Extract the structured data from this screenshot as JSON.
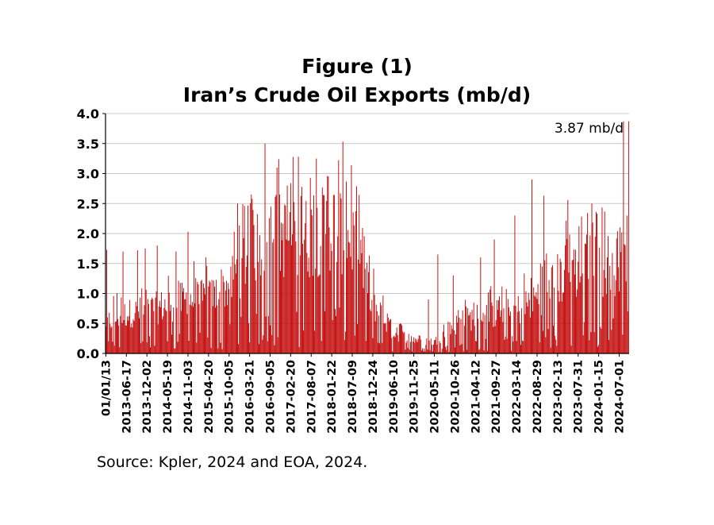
{
  "chart_data": {
    "type": "bar",
    "title": "Figure (1)",
    "subtitle": "Iran’s Crude Oil Exports (mb/d)",
    "source": "Source: Kpler, 2024 and EOA, 2024.",
    "annotation": "3.87 mb/d",
    "ylim": [
      0,
      4.0
    ],
    "y_ticks": [
      "0.0",
      "0.5",
      "1.0",
      "1.5",
      "2.0",
      "2.5",
      "3.0",
      "3.5",
      "4.0"
    ],
    "x_tick_labels": [
      "01/01/13",
      "2013-06-17",
      "2013-12-02",
      "2014-05-19",
      "2014-11-03",
      "2015-04-20",
      "2015-10-05",
      "2016-03-21",
      "2016-09-05",
      "2017-02-20",
      "2017-08-07",
      "2018-01-22",
      "2018-07-09",
      "2018-12-24",
      "2019-06-10",
      "2019-11-25",
      "2020-05-11",
      "2020-10-26",
      "2021-04-12",
      "2021-09-27",
      "2022-03-14",
      "2022-08-29",
      "2023-02-13",
      "2023-07-31",
      "2024-01-15",
      "2024-07-01"
    ],
    "frequency": "weekly",
    "bar_color": "#c00000",
    "grid": "horizontal",
    "trend_anchors": [
      [
        0,
        0.55
      ],
      [
        24,
        0.7
      ],
      [
        48,
        0.75
      ],
      [
        72,
        0.85
      ],
      [
        96,
        0.95
      ],
      [
        120,
        0.95
      ],
      [
        144,
        1.2
      ],
      [
        168,
        1.8
      ],
      [
        192,
        2.15
      ],
      [
        216,
        2.0
      ],
      [
        240,
        2.05
      ],
      [
        264,
        2.25
      ],
      [
        288,
        2.05
      ],
      [
        300,
        1.4
      ],
      [
        312,
        0.9
      ],
      [
        336,
        0.35
      ],
      [
        360,
        0.25
      ],
      [
        384,
        0.2
      ],
      [
        408,
        0.5
      ],
      [
        432,
        0.65
      ],
      [
        456,
        0.7
      ],
      [
        480,
        0.75
      ],
      [
        504,
        1.0
      ],
      [
        528,
        1.3
      ],
      [
        552,
        1.45
      ],
      [
        576,
        1.55
      ],
      [
        600,
        1.6
      ],
      [
        611,
        1.6
      ]
    ],
    "peak_anchors": [
      [
        1,
        1.73
      ],
      [
        20,
        1.7
      ],
      [
        37,
        1.72
      ],
      [
        46,
        1.75
      ],
      [
        60,
        1.8
      ],
      [
        82,
        1.7
      ],
      [
        96,
        2.03
      ],
      [
        117,
        1.6
      ],
      [
        135,
        1.4
      ],
      [
        154,
        2.5
      ],
      [
        170,
        2.65
      ],
      [
        186,
        3.5
      ],
      [
        200,
        3.1
      ],
      [
        212,
        2.8
      ],
      [
        225,
        3.28
      ],
      [
        246,
        3.25
      ],
      [
        260,
        2.95
      ],
      [
        283,
        2.06
      ],
      [
        297,
        1.5
      ],
      [
        310,
        0.7
      ],
      [
        330,
        0.6
      ],
      [
        344,
        0.5
      ],
      [
        377,
        0.9
      ],
      [
        388,
        1.65
      ],
      [
        406,
        1.3
      ],
      [
        438,
        1.6
      ],
      [
        454,
        1.9
      ],
      [
        478,
        2.3
      ],
      [
        498,
        2.9
      ],
      [
        512,
        2.63
      ],
      [
        540,
        2.56
      ],
      [
        568,
        2.5
      ],
      [
        574,
        2.33
      ],
      [
        605,
        3.87
      ]
    ],
    "last_value": 3.87
  }
}
